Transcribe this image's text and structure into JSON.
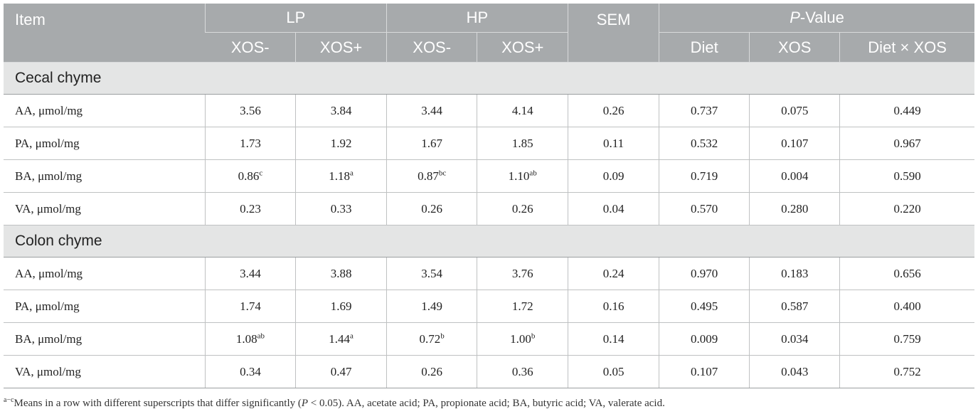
{
  "header": {
    "item": "Item",
    "lp": "LP",
    "hp": "HP",
    "sem": "SEM",
    "pvalue_p": "P",
    "pvalue_rest": "-Value",
    "xos_minus_1": "XOS-",
    "xos_plus_1": "XOS+",
    "xos_minus_2": "XOS-",
    "xos_plus_2": "XOS+",
    "diet": "Diet",
    "xos": "XOS",
    "diet_x_xos": "Diet × XOS"
  },
  "sections": [
    {
      "title": "Cecal chyme",
      "rows": [
        {
          "label": "AA, μmol/mg",
          "lp_minus": "3.56",
          "lp_minus_sup": "",
          "lp_plus": "3.84",
          "lp_plus_sup": "",
          "hp_minus": "3.44",
          "hp_minus_sup": "",
          "hp_plus": "4.14",
          "hp_plus_sup": "",
          "sem": "0.26",
          "diet": "0.737",
          "xos": "0.075",
          "dxx": "0.449"
        },
        {
          "label": "PA, μmol/mg",
          "lp_minus": "1.73",
          "lp_minus_sup": "",
          "lp_plus": "1.92",
          "lp_plus_sup": "",
          "hp_minus": "1.67",
          "hp_minus_sup": "",
          "hp_plus": "1.85",
          "hp_plus_sup": "",
          "sem": "0.11",
          "diet": "0.532",
          "xos": "0.107",
          "dxx": "0.967"
        },
        {
          "label": "BA, μmol/mg",
          "lp_minus": "0.86",
          "lp_minus_sup": "c",
          "lp_plus": "1.18",
          "lp_plus_sup": "a",
          "hp_minus": "0.87",
          "hp_minus_sup": "bc",
          "hp_plus": "1.10",
          "hp_plus_sup": "ab",
          "sem": "0.09",
          "diet": "0.719",
          "xos": "0.004",
          "dxx": "0.590"
        },
        {
          "label": "VA, μmol/mg",
          "lp_minus": "0.23",
          "lp_minus_sup": "",
          "lp_plus": "0.33",
          "lp_plus_sup": "",
          "hp_minus": "0.26",
          "hp_minus_sup": "",
          "hp_plus": "0.26",
          "hp_plus_sup": "",
          "sem": "0.04",
          "diet": "0.570",
          "xos": "0.280",
          "dxx": "0.220"
        }
      ]
    },
    {
      "title": "Colon chyme",
      "rows": [
        {
          "label": "AA, μmol/mg",
          "lp_minus": "3.44",
          "lp_minus_sup": "",
          "lp_plus": "3.88",
          "lp_plus_sup": "",
          "hp_minus": "3.54",
          "hp_minus_sup": "",
          "hp_plus": "3.76",
          "hp_plus_sup": "",
          "sem": "0.24",
          "diet": "0.970",
          "xos": "0.183",
          "dxx": "0.656"
        },
        {
          "label": "PA, μmol/mg",
          "lp_minus": "1.74",
          "lp_minus_sup": "",
          "lp_plus": "1.69",
          "lp_plus_sup": "",
          "hp_minus": "1.49",
          "hp_minus_sup": "",
          "hp_plus": "1.72",
          "hp_plus_sup": "",
          "sem": "0.16",
          "diet": "0.495",
          "xos": "0.587",
          "dxx": "0.400"
        },
        {
          "label": "BA, μmol/mg",
          "lp_minus": "1.08",
          "lp_minus_sup": "ab",
          "lp_plus": "1.44",
          "lp_plus_sup": "a",
          "hp_minus": "0.72",
          "hp_minus_sup": "b",
          "hp_plus": "1.00",
          "hp_plus_sup": "b",
          "sem": "0.14",
          "diet": "0.009",
          "xos": "0.034",
          "dxx": "0.759"
        },
        {
          "label": "VA, μmol/mg",
          "lp_minus": "0.34",
          "lp_minus_sup": "",
          "lp_plus": "0.47",
          "lp_plus_sup": "",
          "hp_minus": "0.26",
          "hp_minus_sup": "",
          "hp_plus": "0.36",
          "hp_plus_sup": "",
          "sem": "0.05",
          "diet": "0.107",
          "xos": "0.043",
          "dxx": "0.752"
        }
      ]
    }
  ],
  "footnote": {
    "sup": "a−c",
    "text_before_p": "Means in a row with different superscripts that differ significantly (",
    "p": "P",
    "text_after_p": " < 0.05). AA, acetate acid; PA, propionate acid; BA, butyric acid; VA, valerate acid."
  },
  "colors": {
    "header_bg": "#a7aaac",
    "section_bg": "#e4e5e5",
    "header_text": "#ffffff"
  }
}
